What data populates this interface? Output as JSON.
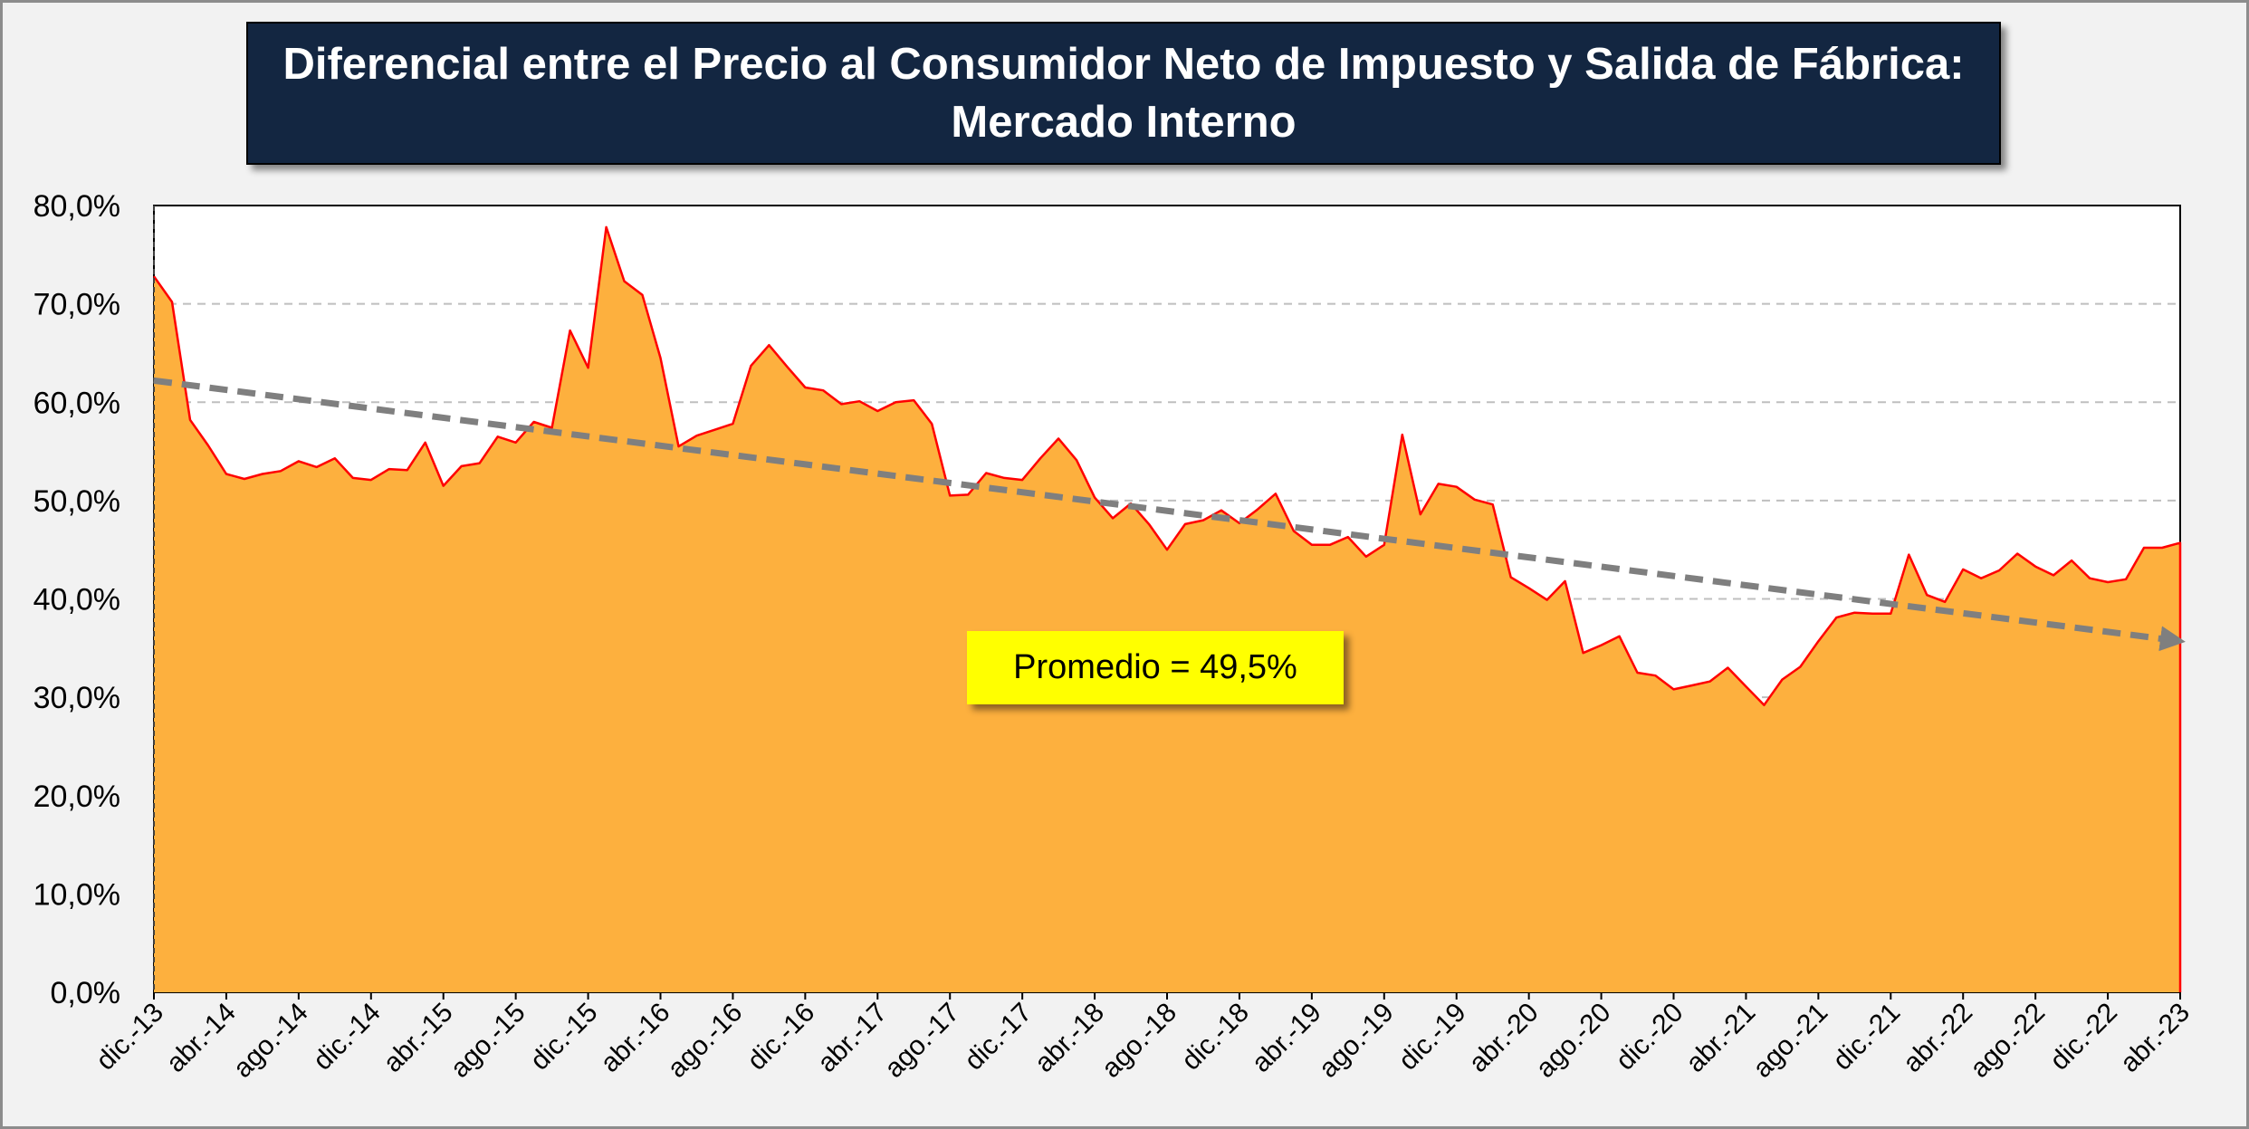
{
  "title": {
    "line1": "Diferencial entre el Precio al Consumidor Neto de Impuesto y Salida de Fábrica:",
    "line2": "Mercado Interno"
  },
  "annotation": "Promedio = 49,5%",
  "colors": {
    "frame_background": "#f2f2f2",
    "title_background": "#132641",
    "title_text": "#ffffff",
    "area_fill": "#fdb03e",
    "line": "#ff0000",
    "trendline": "#7f7f7f",
    "gridline": "#bfbfbf",
    "annotation_background": "#ffff00"
  },
  "chart_data": {
    "type": "area",
    "title": "Diferencial entre el Precio al Consumidor Neto de Impuesto y Salida de Fábrica: Mercado Interno",
    "xlabel": "",
    "ylabel": "",
    "x_start": "dic.-13",
    "x_end": "abr.-23",
    "x_frequency": "monthly",
    "x_tick_labels": [
      "dic.-13",
      "abr.-14",
      "ago.-14",
      "dic.-14",
      "abr.-15",
      "ago.-15",
      "dic.-15",
      "abr.-16",
      "ago.-16",
      "dic.-16",
      "abr.-17",
      "ago.-17",
      "dic.-17",
      "abr.-18",
      "ago.-18",
      "dic.-18",
      "abr.-19",
      "ago.-19",
      "dic.-19",
      "abr.-20",
      "ago.-20",
      "dic.-20",
      "abr.-21",
      "ago.-21",
      "dic.-21",
      "abr.-22",
      "ago.-22",
      "dic.-22",
      "abr.-23"
    ],
    "y_tick_labels": [
      "0,0%",
      "10,0%",
      "20,0%",
      "30,0%",
      "40,0%",
      "50,0%",
      "60,0%",
      "70,0%",
      "80,0%"
    ],
    "ylim": [
      0,
      80
    ],
    "y_unit": "%",
    "grid": "horizontal dashed",
    "legend": "none",
    "series": [
      {
        "values": [
          72.8,
          70.2,
          58.2,
          55.6,
          52.7,
          52.2,
          52.7,
          53.0,
          54.0,
          53.4,
          54.3,
          52.3,
          52.1,
          53.2,
          53.1,
          55.9,
          51.5,
          53.5,
          53.8,
          56.5,
          55.9,
          58.0,
          57.4,
          67.3,
          63.5,
          77.8,
          72.3,
          70.9,
          64.5,
          55.5,
          56.6,
          57.2,
          57.8,
          63.7,
          65.8,
          63.6,
          61.5,
          61.2,
          59.8,
          60.1,
          59.1,
          60.0,
          60.2,
          57.8,
          50.5,
          50.6,
          52.8,
          52.3,
          52.1,
          54.3,
          56.3,
          54.1,
          50.3,
          48.2,
          49.7,
          47.6,
          45.0,
          47.6,
          48.0,
          49.0,
          47.7,
          49.1,
          50.7,
          46.9,
          45.5,
          45.5,
          46.3,
          44.3,
          45.5,
          56.7,
          48.6,
          51.7,
          51.4,
          50.1,
          49.6,
          42.2,
          41.1,
          39.9,
          41.8,
          34.5,
          35.3,
          36.2,
          32.5,
          32.2,
          30.8,
          31.2,
          31.6,
          33.0,
          31.1,
          29.2,
          31.8,
          33.1,
          35.7,
          38.1,
          38.6,
          38.5,
          38.5,
          44.5,
          40.4,
          39.7,
          43.0,
          42.1,
          42.9,
          44.6,
          43.3,
          42.4,
          43.9,
          42.1,
          41.7,
          42.0,
          45.2,
          45.2,
          45.7
        ]
      }
    ],
    "trendline": {
      "type": "linear",
      "start_value": 62.2,
      "end_value": 35.8,
      "style": "dashed with arrow"
    }
  }
}
